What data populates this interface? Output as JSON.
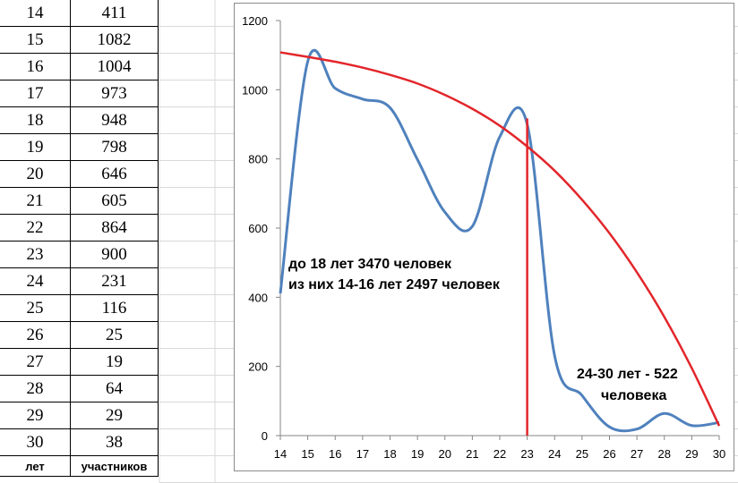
{
  "table": {
    "rows": [
      {
        "age": "14",
        "count": "411"
      },
      {
        "age": "15",
        "count": "1082"
      },
      {
        "age": "16",
        "count": "1004"
      },
      {
        "age": "17",
        "count": "973"
      },
      {
        "age": "18",
        "count": "948"
      },
      {
        "age": "19",
        "count": "798"
      },
      {
        "age": "20",
        "count": "646"
      },
      {
        "age": "21",
        "count": "605"
      },
      {
        "age": "22",
        "count": "864"
      },
      {
        "age": "23",
        "count": "900"
      },
      {
        "age": "24",
        "count": "231"
      },
      {
        "age": "25",
        "count": "116"
      },
      {
        "age": "26",
        "count": "25"
      },
      {
        "age": "27",
        "count": "19"
      },
      {
        "age": "28",
        "count": "64"
      },
      {
        "age": "29",
        "count": "29"
      },
      {
        "age": "30",
        "count": "38"
      }
    ],
    "header": {
      "age": "лет",
      "count": "участников"
    }
  },
  "chart_data": {
    "type": "line",
    "x": [
      14,
      15,
      16,
      17,
      18,
      19,
      20,
      21,
      22,
      23,
      24,
      25,
      26,
      27,
      28,
      29,
      30
    ],
    "series": [
      {
        "values": [
          411,
          1082,
          1004,
          973,
          948,
          798,
          646,
          605,
          864,
          900,
          231,
          116,
          25,
          19,
          64,
          29,
          38
        ],
        "color": "#4f81bd",
        "smooth": true
      },
      {
        "kind": "trend",
        "values": [
          1108,
          1095,
          1081,
          1064,
          1043,
          1018,
          985,
          945,
          896,
          836,
          766,
          682,
          585,
          472,
          343,
          195,
          28
        ],
        "color": "#e2262b"
      }
    ],
    "xlim": [
      14,
      30
    ],
    "ylim": [
      0,
      1200
    ],
    "yticks": [
      0,
      200,
      400,
      600,
      800,
      1000,
      1200
    ],
    "xticks": [
      "14",
      "15",
      "16",
      "17",
      "18",
      "19",
      "20",
      "21",
      "22",
      "23",
      "24",
      "25",
      "26",
      "27",
      "28",
      "29",
      "30"
    ],
    "vertical_marker": {
      "x": 23,
      "color": "#e2262b"
    },
    "grid": false,
    "legend": "none",
    "annotations": [
      {
        "id": "under18",
        "lines": [
          "до 18 лет 3470 человек",
          "из них 14-16 лет 2497 человек"
        ]
      },
      {
        "id": "age24to30",
        "lines": [
          "24-30 лет - 522",
          "человека"
        ]
      }
    ]
  }
}
